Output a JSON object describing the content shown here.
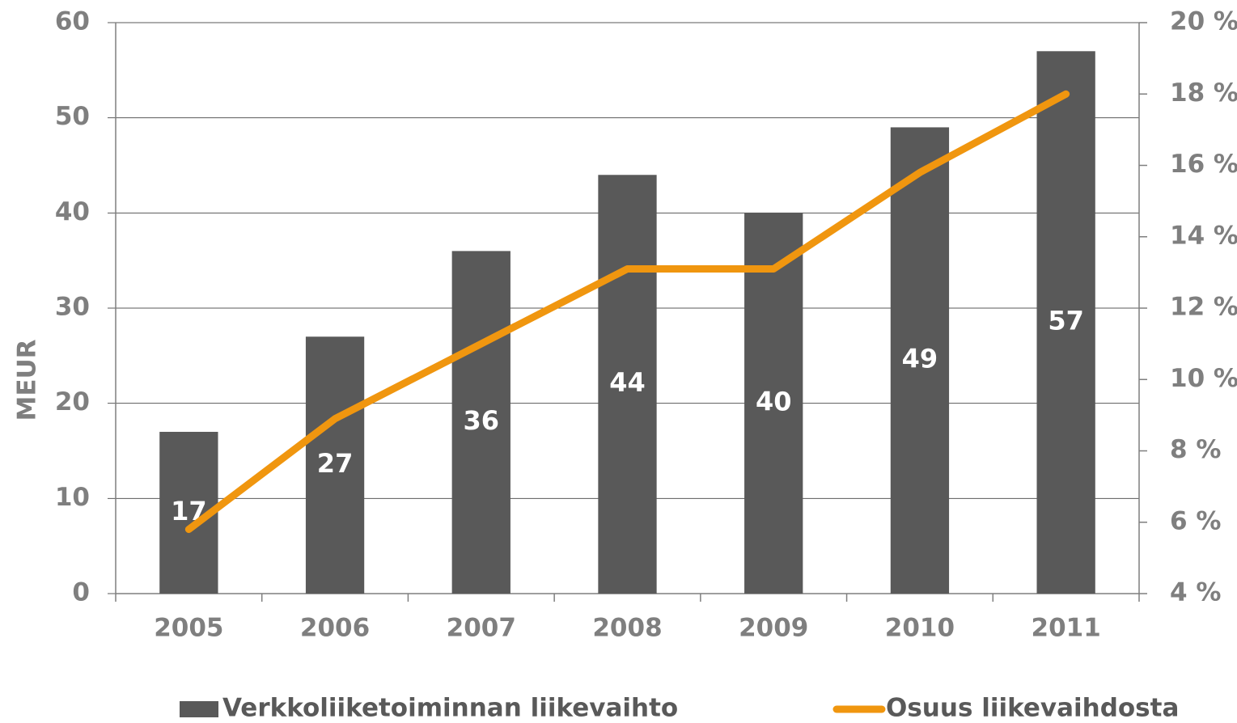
{
  "chart_data": {
    "type": "bar",
    "categories": [
      "2005",
      "2006",
      "2007",
      "2008",
      "2009",
      "2010",
      "2011"
    ],
    "series": [
      {
        "name": "Verkkoliiketoiminnan liikevaihto",
        "type": "bar",
        "color": "#595959",
        "values": [
          17,
          27,
          36,
          44,
          40,
          49,
          57
        ]
      },
      {
        "name": "Osuus liikevaihdosta",
        "type": "line",
        "axis": "y2",
        "color": "#f0960f",
        "values": [
          5.8,
          8.9,
          11.0,
          13.1,
          13.1,
          15.8,
          18.0
        ]
      }
    ],
    "ylabel": "MEUR",
    "ylim": [
      0,
      60
    ],
    "yticks": [
      0,
      10,
      20,
      30,
      40,
      50,
      60
    ],
    "y2lim": [
      4,
      20
    ],
    "y2ticks": [
      {
        "value": 4,
        "label": "4 %"
      },
      {
        "value": 6,
        "label": "6 %"
      },
      {
        "value": 8,
        "label": "8 %"
      },
      {
        "value": 10,
        "label": "10 %"
      },
      {
        "value": 12,
        "label": "12 %"
      },
      {
        "value": 14,
        "label": "14 %"
      },
      {
        "value": 16,
        "label": "16 %"
      },
      {
        "value": 18,
        "label": "18 %"
      },
      {
        "value": 20,
        "label": "20 %"
      }
    ],
    "grid": true,
    "legend": "bottom"
  }
}
